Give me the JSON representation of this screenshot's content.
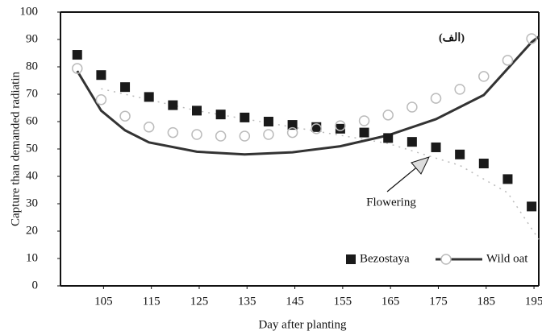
{
  "chart_data": {
    "type": "scatter",
    "xlabel": "Day after planting",
    "ylabel": "Capture than demanded radiatin",
    "xlim": [
      96,
      196
    ],
    "ylim": [
      0,
      100
    ],
    "xticks": [
      105,
      115,
      125,
      135,
      145,
      155,
      165,
      175,
      185,
      195
    ],
    "yticks": [
      0,
      10,
      20,
      30,
      40,
      50,
      60,
      70,
      80,
      90,
      100
    ],
    "x": [
      99.5,
      104.5,
      109.5,
      114.5,
      119.5,
      124.5,
      129.5,
      134.5,
      139.5,
      144.5,
      149.5,
      154.5,
      159.5,
      164.5,
      169.5,
      174.5,
      179.5,
      184.5,
      189.5,
      194.5
    ],
    "series": [
      {
        "name": "Bezostaya",
        "color": "#1a1a1a",
        "marker": "square",
        "values": [
          84.4,
          77,
          72.6,
          69,
          66,
          64,
          62.6,
          61.5,
          60,
          58.8,
          58,
          57.4,
          56,
          54,
          52.6,
          50.6,
          48,
          44.7,
          39,
          29
        ],
        "fit": {
          "color": "#bbbbbb",
          "x": [
            104.5,
            124.5,
            144.5,
            164.5,
            179.5,
            189.5,
            196
          ],
          "values": [
            72,
            64,
            58,
            52,
            44,
            34,
            17
          ]
        }
      },
      {
        "name": "Wild oat",
        "color": "#bbbbbb",
        "marker": "circle",
        "values": [
          79.4,
          68,
          62,
          58,
          56,
          55.3,
          54.7,
          54.7,
          55.3,
          56,
          57.4,
          58.5,
          60.3,
          62.4,
          65.3,
          68.5,
          71.8,
          76.5,
          82.4,
          90.3
        ],
        "fit": {
          "color": "#333333",
          "x": [
            99.5,
            104.5,
            109.5,
            114.5,
            124.5,
            134.5,
            144.5,
            154.5,
            164.5,
            174.5,
            184.5,
            194.5,
            196
          ],
          "values": [
            78.5,
            64,
            56.8,
            52.4,
            49,
            48,
            48.8,
            51,
            55,
            60.9,
            69.7,
            89,
            91
          ]
        }
      }
    ],
    "annotations": [
      {
        "text": "(الف)"
      },
      {
        "text": "Flowering"
      }
    ],
    "legend": "lower right"
  }
}
